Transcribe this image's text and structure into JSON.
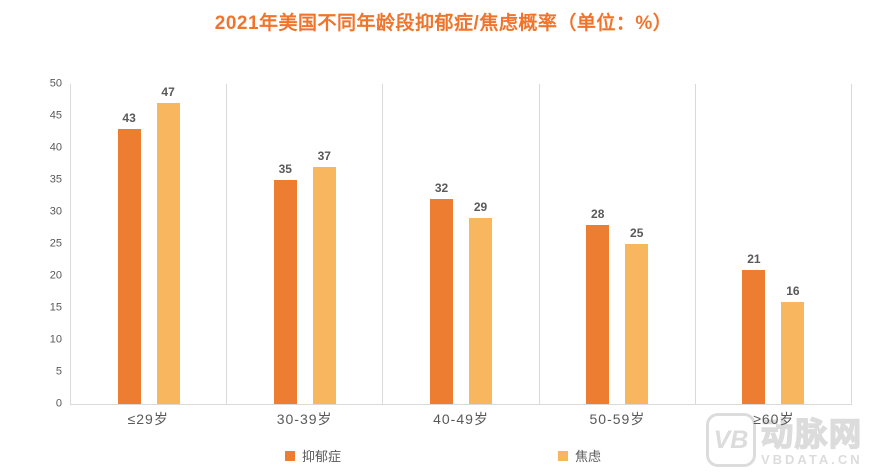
{
  "chart_data": {
    "type": "bar",
    "title": "2021年美国不同年龄段抑郁症/焦虑概率（单位：%）",
    "categories": [
      "≤29岁",
      "30-39岁",
      "40-49岁",
      "50-59岁",
      "≥60岁"
    ],
    "series": [
      {
        "key": "depression",
        "name": "抑郁症",
        "color": "#ED7D31",
        "values": [
          43,
          35,
          32,
          28,
          21
        ]
      },
      {
        "key": "anxiety",
        "name": "焦虑",
        "color": "#F8B65F",
        "values": [
          47,
          37,
          29,
          25,
          16
        ]
      }
    ],
    "xlabel": "",
    "ylabel": "",
    "unit": "%",
    "ylim": [
      0,
      50
    ],
    "yticks": [
      0,
      5,
      10,
      15,
      20,
      25,
      30,
      35,
      40,
      45,
      50
    ],
    "grid": "vertical group separators",
    "legend_position": "bottom",
    "value_labels": true
  },
  "colors": {
    "title": "#F0752C",
    "grid": "#D9D9D9",
    "label": "#595959",
    "watermark": "#DCDCDC"
  },
  "watermark": {
    "logo": "VB",
    "name": "动脉网",
    "site": "VBDATA.CN"
  }
}
